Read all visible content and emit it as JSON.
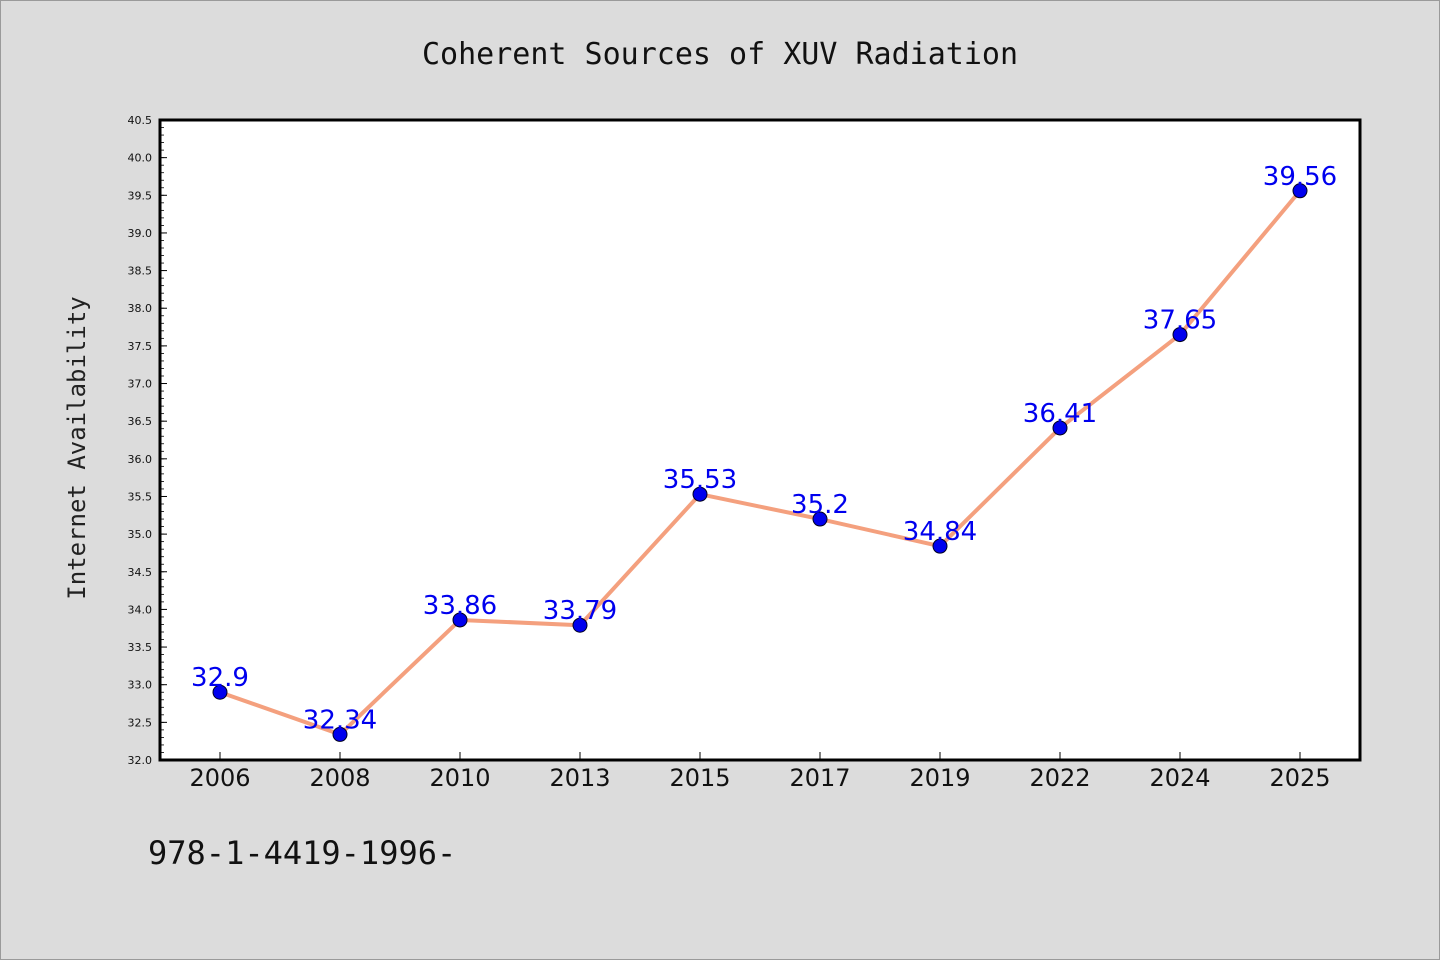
{
  "chart_data": {
    "type": "line",
    "title": "Coherent Sources of XUV Radiation",
    "xlabel": "",
    "ylabel": "Internet Availability",
    "categories": [
      "2006",
      "2008",
      "2010",
      "2013",
      "2015",
      "2017",
      "2019",
      "2022",
      "2024",
      "2025"
    ],
    "series": [
      {
        "values": [
          32.9,
          32.34,
          33.86,
          33.79,
          35.53,
          35.2,
          34.84,
          36.41,
          37.65,
          39.56
        ],
        "data_labels": [
          "32.9",
          "32.34",
          "33.86",
          "33.79",
          "35.53",
          "35.2",
          "34.84",
          "36.41",
          "37.65",
          "39.56"
        ],
        "line_color": "#f4a07e",
        "marker_color": "#0000ee"
      }
    ],
    "ylim": [
      32.0,
      40.5
    ],
    "yticks": [
      "32.0",
      "32.5",
      "33.0",
      "33.5",
      "34.0",
      "34.5",
      "35.0",
      "35.5",
      "36.0",
      "36.5",
      "37.0",
      "37.5",
      "38.0",
      "38.5",
      "39.0",
      "39.5",
      "40.0",
      "40.5"
    ],
    "grid": false,
    "legend": "none"
  },
  "footnote": "978-1-4419-1996-",
  "colors": {
    "background": "#dcdcdc",
    "plot_background": "#ffffff",
    "axis": "#000000",
    "data_label": "#0000ee"
  }
}
